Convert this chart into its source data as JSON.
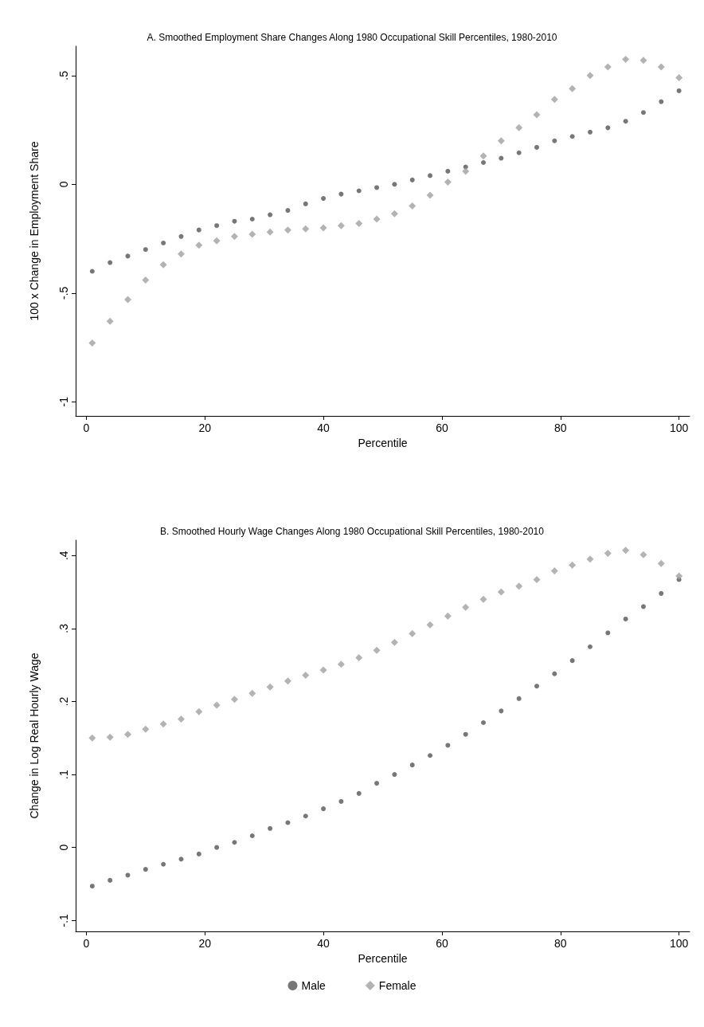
{
  "chart_data": [
    {
      "type": "scatter",
      "title": "A. Smoothed Employment Share Changes Along 1980 Occupational Skill Percentiles, 1980-2010",
      "xlabel": "Percentile",
      "ylabel": "100 x Change in Employment Share",
      "xlim": [
        -1.8,
        101.8
      ],
      "ylim": [
        -1.065,
        0.635
      ],
      "xticks": [
        0,
        20,
        40,
        60,
        80,
        100
      ],
      "yticks": [
        {
          "value": -1,
          "label": "-1"
        },
        {
          "value": -0.5,
          "label": "-.5"
        },
        0,
        {
          "value": 0.5,
          "label": ".5"
        }
      ],
      "grid": false,
      "legend": false,
      "series": [
        {
          "color": "#555555",
          "marker": "circle",
          "x": [
            1,
            4,
            7,
            10,
            13,
            16,
            19,
            22,
            25,
            28,
            31,
            34,
            37,
            40,
            43,
            46,
            49,
            52,
            55,
            58,
            61,
            64,
            67,
            70,
            73,
            76,
            79,
            82,
            85,
            88,
            91,
            94,
            97,
            100
          ],
          "values": [
            -0.4,
            -0.36,
            -0.33,
            -0.3,
            -0.27,
            -0.24,
            -0.21,
            -0.19,
            -0.17,
            -0.16,
            -0.14,
            -0.12,
            -0.09,
            -0.065,
            -0.045,
            -0.03,
            -0.015,
            0.0,
            0.02,
            0.04,
            0.06,
            0.08,
            0.1,
            0.12,
            0.145,
            0.17,
            0.2,
            0.22,
            0.24,
            0.26,
            0.29,
            0.33,
            0.38,
            0.43
          ]
        },
        {
          "color": "#a0a0a0",
          "marker": "diamond",
          "x": [
            1,
            4,
            7,
            10,
            13,
            16,
            19,
            22,
            25,
            28,
            31,
            34,
            37,
            40,
            43,
            46,
            49,
            52,
            55,
            58,
            61,
            64,
            67,
            70,
            73,
            76,
            79,
            82,
            85,
            88,
            91,
            94,
            97,
            100
          ],
          "values": [
            -0.73,
            -0.63,
            -0.53,
            -0.44,
            -0.37,
            -0.32,
            -0.28,
            -0.26,
            -0.24,
            -0.23,
            -0.22,
            -0.21,
            -0.205,
            -0.2,
            -0.19,
            -0.18,
            -0.16,
            -0.135,
            -0.1,
            -0.05,
            0.01,
            0.06,
            0.13,
            0.2,
            0.26,
            0.32,
            0.39,
            0.44,
            0.5,
            0.54,
            0.575,
            0.57,
            0.54,
            0.49
          ]
        }
      ]
    },
    {
      "type": "scatter",
      "title": "B. Smoothed Hourly Wage Changes Along 1980 Occupational Skill Percentiles, 1980-2010",
      "xlabel": "Percentile",
      "ylabel": "Change in Log Real Hourly Wage",
      "xlim": [
        -1.8,
        101.8
      ],
      "ylim": [
        -0.115,
        0.421
      ],
      "xticks": [
        0,
        20,
        40,
        60,
        80,
        100
      ],
      "yticks": [
        {
          "value": -0.1,
          "label": "-.1"
        },
        0,
        {
          "value": 0.1,
          "label": ".1"
        },
        {
          "value": 0.2,
          "label": ".2"
        },
        {
          "value": 0.3,
          "label": ".3"
        },
        {
          "value": 0.4,
          "label": ".4"
        }
      ],
      "grid": false,
      "legend": "bottom",
      "series": [
        {
          "name": "Male",
          "color": "#555555",
          "marker": "circle",
          "x": [
            1,
            4,
            7,
            10,
            13,
            16,
            19,
            22,
            25,
            28,
            31,
            34,
            37,
            40,
            43,
            46,
            49,
            52,
            55,
            58,
            61,
            64,
            67,
            70,
            73,
            76,
            79,
            82,
            85,
            88,
            91,
            94,
            97,
            100
          ],
          "values": [
            -0.053,
            -0.045,
            -0.038,
            -0.03,
            -0.023,
            -0.016,
            -0.009,
            0.0,
            0.007,
            0.016,
            0.026,
            0.034,
            0.043,
            0.053,
            0.063,
            0.074,
            0.088,
            0.1,
            0.113,
            0.126,
            0.14,
            0.155,
            0.171,
            0.187,
            0.204,
            0.221,
            0.238,
            0.256,
            0.275,
            0.294,
            0.313,
            0.33,
            0.348,
            0.367
          ]
        },
        {
          "name": "Female",
          "color": "#a0a0a0",
          "marker": "diamond",
          "x": [
            1,
            4,
            7,
            10,
            13,
            16,
            19,
            22,
            25,
            28,
            31,
            34,
            37,
            40,
            43,
            46,
            49,
            52,
            55,
            58,
            61,
            64,
            67,
            70,
            73,
            76,
            79,
            82,
            85,
            88,
            91,
            94,
            97,
            100
          ],
          "values": [
            0.15,
            0.151,
            0.155,
            0.162,
            0.169,
            0.176,
            0.186,
            0.195,
            0.203,
            0.211,
            0.22,
            0.228,
            0.236,
            0.243,
            0.251,
            0.26,
            0.27,
            0.281,
            0.293,
            0.305,
            0.317,
            0.329,
            0.34,
            0.35,
            0.358,
            0.367,
            0.379,
            0.387,
            0.395,
            0.403,
            0.407,
            0.401,
            0.389,
            0.372
          ]
        }
      ]
    }
  ]
}
